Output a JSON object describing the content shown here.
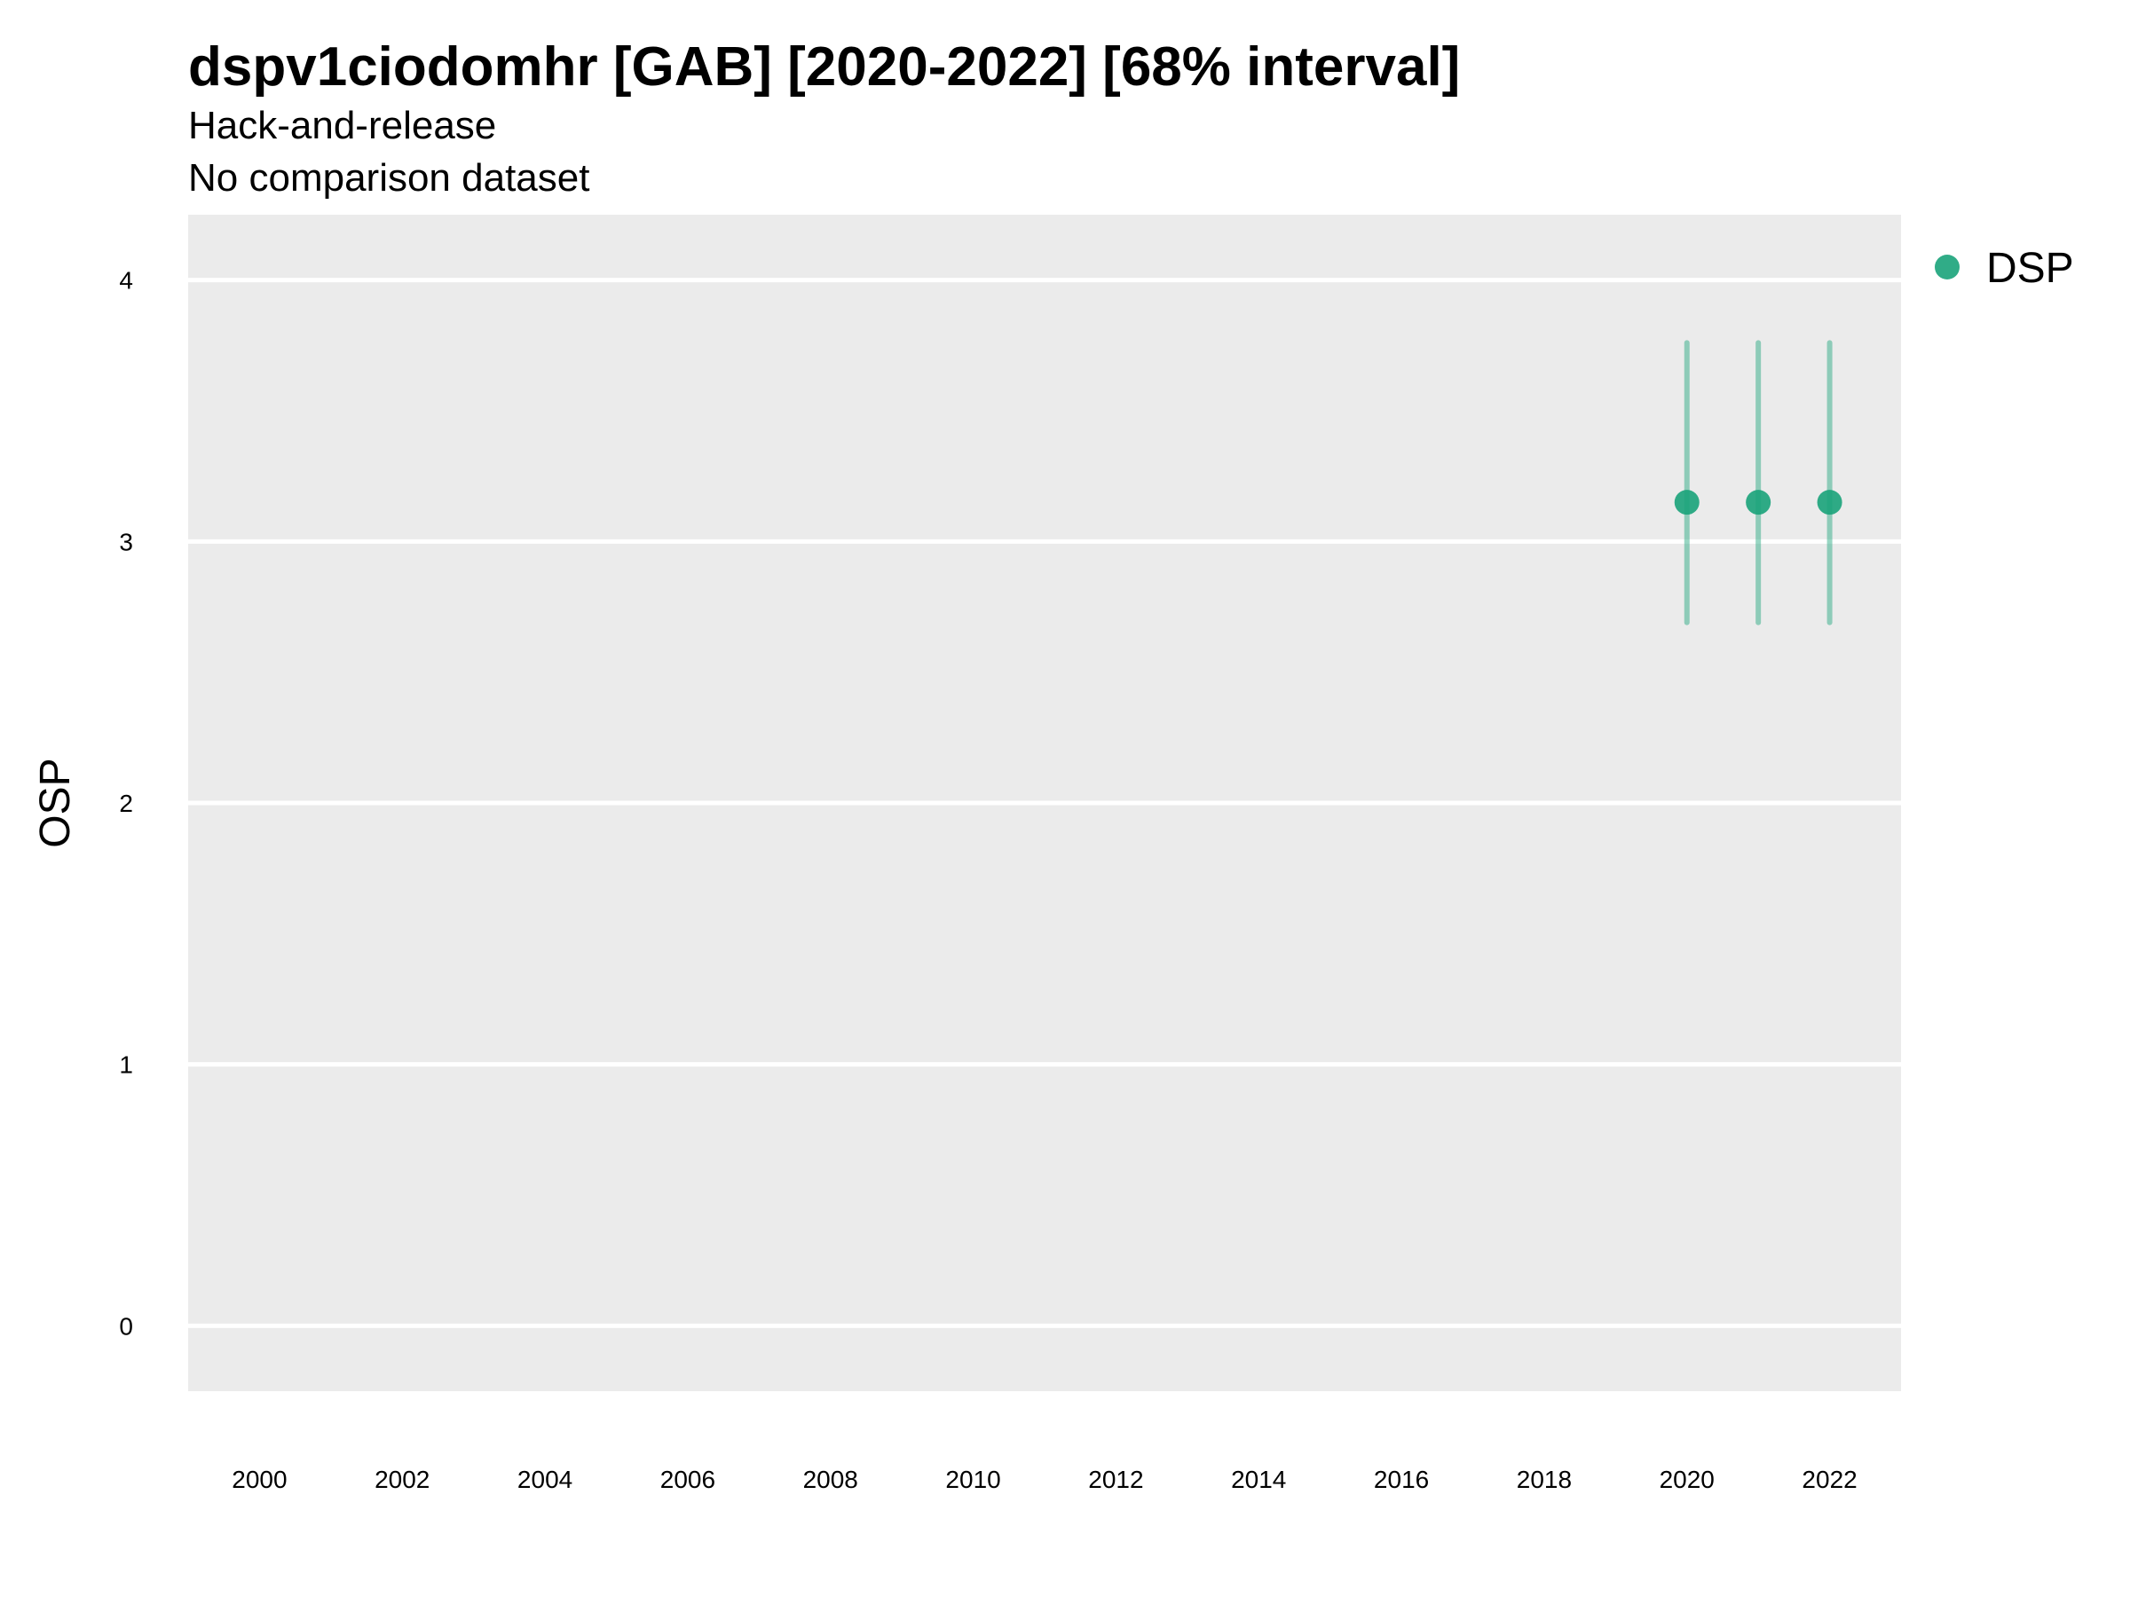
{
  "chart_data": {
    "type": "scatter",
    "title": "dspv1ciodomhr [GAB] [2020-2022] [68% interval]",
    "subtitle": "Hack-and-release",
    "subtitle2": "No comparison dataset",
    "xlabel": "",
    "ylabel": "OSP",
    "xlim": [
      1999,
      2023
    ],
    "ylim": [
      -0.25,
      4.25
    ],
    "x_ticks": [
      2000,
      2002,
      2004,
      2006,
      2008,
      2010,
      2012,
      2014,
      2016,
      2018,
      2020,
      2022
    ],
    "x_tick_labels": [
      "2000",
      "2002",
      "2004",
      "2006",
      "2008",
      "2010",
      "2012",
      "2014",
      "2016",
      "2018",
      "2020",
      "2022"
    ],
    "y_ticks": [
      0,
      1,
      2,
      3,
      4
    ],
    "y_tick_labels": [
      "0",
      "1",
      "2",
      "3",
      "4"
    ],
    "grid": true,
    "legend_position": "top-right",
    "panel_color": "#EBEBEB",
    "grid_color": "#FFFFFF",
    "series": [
      {
        "name": "DSP",
        "color": "#1AA37A",
        "points": [
          {
            "x": 2020,
            "y": 3.15,
            "lower": 2.69,
            "upper": 3.76
          },
          {
            "x": 2021,
            "y": 3.15,
            "lower": 2.69,
            "upper": 3.76
          },
          {
            "x": 2022,
            "y": 3.15,
            "lower": 2.69,
            "upper": 3.76
          }
        ]
      }
    ]
  }
}
